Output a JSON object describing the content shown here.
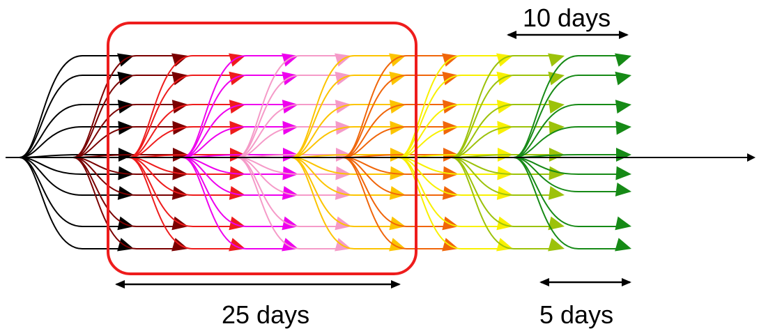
{
  "labels": {
    "top_span": "10 days",
    "bottom_long_span": "25 days",
    "bottom_short_span": "5 days"
  },
  "highlight_color": "#ee1c1c",
  "axis_color": "#000000",
  "fans": [
    {
      "color": "#000000"
    },
    {
      "color": "#7a0000"
    },
    {
      "color": "#ee1c1c"
    },
    {
      "color": "#ee00ee"
    },
    {
      "color": "#f59ac8"
    },
    {
      "color": "#fcc400"
    },
    {
      "color": "#f0660a"
    },
    {
      "color": "#f8f000"
    },
    {
      "color": "#9cc20a"
    },
    {
      "color": "#168a16"
    }
  ]
}
